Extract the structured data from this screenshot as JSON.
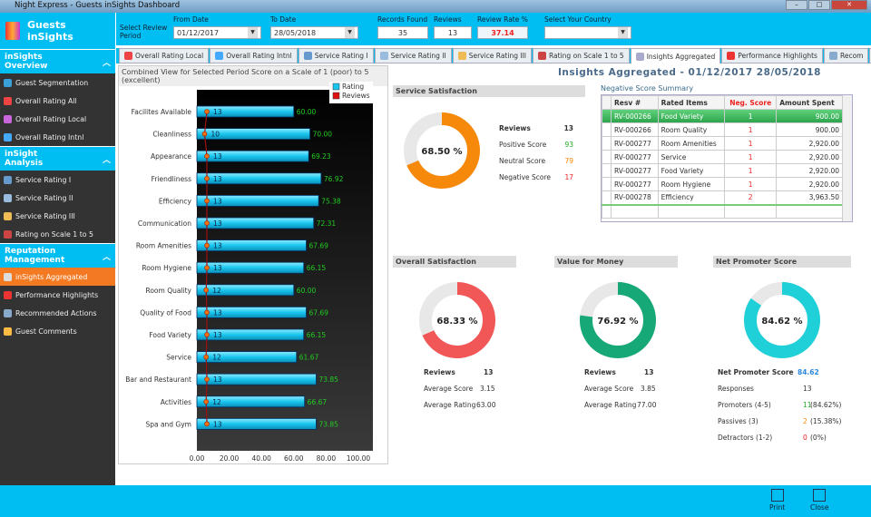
{
  "window": {
    "title": "Night Express - Guests inSights Dashboard"
  },
  "sidebar": {
    "app_title": "Guests inSights",
    "sections": [
      {
        "title": "inSights Overview",
        "items": [
          {
            "label": "Guest Segmentation",
            "color": "#3aa0d8"
          },
          {
            "label": "Overall Rating All",
            "color": "#e44"
          },
          {
            "label": "Overall Rating Local",
            "color": "#c6d"
          },
          {
            "label": "Overall Rating Intnl",
            "color": "#4af"
          }
        ]
      },
      {
        "title": "inSight Analysis",
        "items": [
          {
            "label": "Service Rating I",
            "color": "#69c"
          },
          {
            "label": "Service Rating II",
            "color": "#9bd"
          },
          {
            "label": "Service Rating III",
            "color": "#eb5"
          },
          {
            "label": "Rating on Scale 1 to 5",
            "color": "#c44"
          }
        ]
      },
      {
        "title": "Reputation Management",
        "items": [
          {
            "label": "inSights Aggregated",
            "color": "#ddd",
            "active": true
          },
          {
            "label": "Performance Highlights",
            "color": "#e33"
          },
          {
            "label": "Recommended Actions",
            "color": "#8ac"
          },
          {
            "label": "Guest Comments",
            "color": "#fb4"
          }
        ]
      }
    ]
  },
  "header": {
    "select_period": "Select Review Period",
    "from_label": "From Date",
    "from_value": "01/12/2017",
    "to_label": "To Date",
    "to_value": "28/05/2018",
    "records_label": "Records Found",
    "records_value": "35",
    "reviews_label": "Reviews",
    "reviews_value": "13",
    "rate_label": "Review Rate %",
    "rate_value": "37.14",
    "country_label": "Select Your Country",
    "country_value": ""
  },
  "tabs": [
    {
      "label": "Overall Rating Local"
    },
    {
      "label": "Overall Rating Intnl"
    },
    {
      "label": "Service Rating I"
    },
    {
      "label": "Service Rating II"
    },
    {
      "label": "Service Rating III"
    },
    {
      "label": "Rating on Scale 1 to 5"
    },
    {
      "label": "Insights Aggregated",
      "active": true
    },
    {
      "label": "Performance Highlights"
    },
    {
      "label": "Recom"
    }
  ],
  "page_title": "Insights Aggregated - 01/12/2017  28/05/2018",
  "chart_data": {
    "type": "bar",
    "title": "Combined View for Selected Period Score on a Scale of 1 (poor) to 5 (excellent)",
    "categories": [
      "Facilites Available",
      "Cleanliness",
      "Appearance",
      "Friendliness",
      "Efficiency",
      "Communication",
      "Room Amenities",
      "Room Hygiene",
      "Room Quality",
      "Quality of Food",
      "Food Variety",
      "Service",
      "Bar and Restaurant",
      "Activities",
      "Spa and Gym"
    ],
    "series": [
      {
        "name": "Rating",
        "color": "#19c6ee",
        "values": [
          60.0,
          70.0,
          69.23,
          76.92,
          75.38,
          72.31,
          67.69,
          66.15,
          60.0,
          67.69,
          66.15,
          61.67,
          73.85,
          66.67,
          73.85
        ]
      },
      {
        "name": "Reviews",
        "color": "#e01010",
        "values": [
          13,
          10,
          13,
          13,
          13,
          13,
          13,
          13,
          12,
          13,
          13,
          12,
          13,
          12,
          13
        ]
      }
    ],
    "xlim": [
      0,
      100
    ],
    "xticks": [
      "0.00",
      "20.00",
      "40.00",
      "60.00",
      "80.00",
      "100.00"
    ],
    "legend": "top-right"
  },
  "service": {
    "title": "Service Satisfaction",
    "percent": 68.5,
    "percent_label": "68.50 %",
    "color": "#f7890a",
    "reviews_label": "Reviews",
    "reviews": "13",
    "rows": [
      {
        "label": "Positive Score",
        "value": "93",
        "color": "#2a2"
      },
      {
        "label": "Neutral Score",
        "value": "79",
        "color": "#f80"
      },
      {
        "label": "Negative Score",
        "value": "17",
        "color": "#e22"
      }
    ]
  },
  "negative": {
    "title": "Negative Score Summary",
    "columns": [
      "Resv #",
      "Rated Items",
      "Neg. Score",
      "Amount Spent"
    ],
    "rows": [
      [
        "RV-000266",
        "Food Variety",
        "1",
        "900.00"
      ],
      [
        "RV-000266",
        "Room Quality",
        "1",
        "900.00"
      ],
      [
        "RV-000277",
        "Room Amenities",
        "1",
        "2,920.00"
      ],
      [
        "RV-000277",
        "Service",
        "1",
        "2,920.00"
      ],
      [
        "RV-000277",
        "Food Variety",
        "1",
        "2,920.00"
      ],
      [
        "RV-000277",
        "Room Hygiene",
        "1",
        "2,920.00"
      ],
      [
        "RV-000278",
        "Efficiency",
        "2",
        "3,963.50"
      ]
    ]
  },
  "overall": {
    "title": "Overall Satisfaction",
    "percent": 68.33,
    "percent_label": "68.33 %",
    "color": "#f25757",
    "reviews_label": "Reviews",
    "reviews": "13",
    "avg_score_label": "Average Score",
    "avg_score": "3.15",
    "avg_rating_label": "Average Rating",
    "avg_rating": "63.00"
  },
  "value": {
    "title": "Value for Money",
    "percent": 76.92,
    "percent_label": "76.92 %",
    "color": "#17a878",
    "reviews_label": "Reviews",
    "reviews": "13",
    "avg_score_label": "Average Score",
    "avg_score": "3.85",
    "avg_rating_label": "Average Rating",
    "avg_rating": "77.00"
  },
  "nps": {
    "title": "Net Promoter Score",
    "percent": 84.62,
    "percent_label": "84.62 %",
    "color": "#1fd0d8",
    "score_label": "Net Promoter Score",
    "score": "84.62",
    "rows": [
      {
        "label": "Responses",
        "count": "13",
        "pct": "",
        "color": "#333"
      },
      {
        "label": "Promoters (4-5)",
        "count": "11",
        "pct": "(84.62%)",
        "color": "#2a2"
      },
      {
        "label": "Passives (3)",
        "count": "2",
        "pct": "(15.38%)",
        "color": "#f80"
      },
      {
        "label": "Detractors (1-2)",
        "count": "0",
        "pct": "(0%)",
        "color": "#e22"
      }
    ]
  },
  "footer": {
    "print": "Print",
    "close": "Close"
  }
}
